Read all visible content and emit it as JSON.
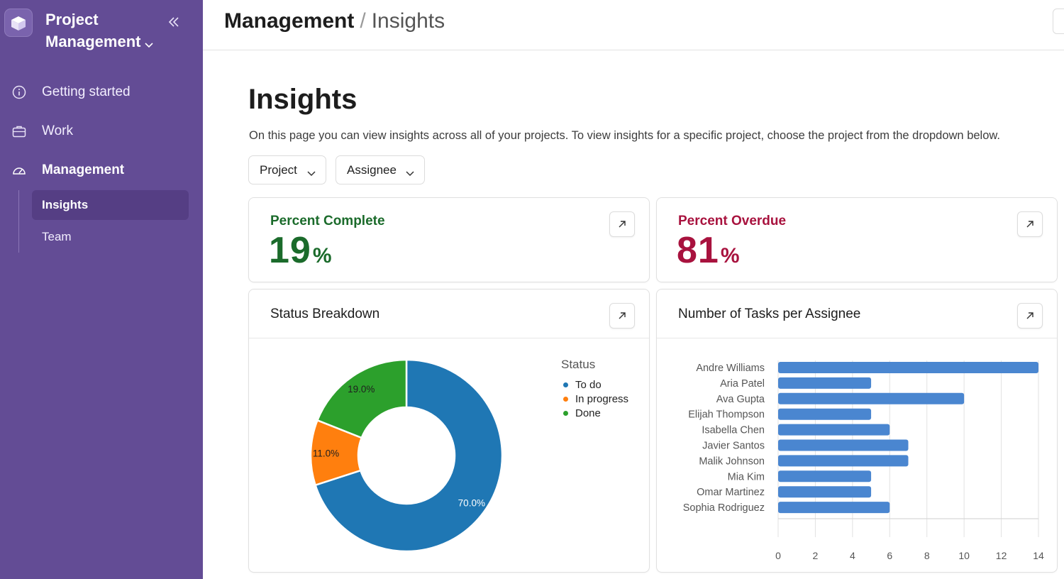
{
  "app": {
    "title_line1": "Project",
    "title_line2": "Management"
  },
  "sidebar": {
    "items": [
      {
        "label": "Getting started",
        "icon": "info-icon"
      },
      {
        "label": "Work",
        "icon": "briefcase-icon"
      },
      {
        "label": "Management",
        "icon": "gauge-icon"
      }
    ],
    "subitems": [
      {
        "label": "Insights",
        "active": true
      },
      {
        "label": "Team",
        "active": false
      }
    ]
  },
  "header": {
    "breadcrumb_parent": "Management",
    "breadcrumb_separator": "/",
    "breadcrumb_current": "Insights"
  },
  "main": {
    "title": "Insights",
    "description": "On this page you can view insights across all of your projects. To view insights for a specific project, choose the project from the dropdown below.",
    "filters": {
      "project_label": "Project",
      "assignee_label": "Assignee"
    },
    "percent_complete": {
      "label": "Percent Complete",
      "value": "19",
      "unit": "%"
    },
    "percent_overdue": {
      "label": "Percent Overdue",
      "value": "81",
      "unit": "%"
    },
    "status_card_title": "Status Breakdown",
    "assignee_card_title": "Number of Tasks per Assignee"
  },
  "colors": {
    "sidebar": "#634c95",
    "complete": "#1b6b2b",
    "overdue": "#a8123e",
    "todo": "#1f77b4",
    "in_progress": "#ff7f0e",
    "done": "#2ca02c",
    "bar": "#4a86d0"
  },
  "chart_data": [
    {
      "type": "pie",
      "title": "Status Breakdown",
      "legend_title": "Status",
      "legend_position": "top-right",
      "categories": [
        "To do",
        "In progress",
        "Done"
      ],
      "values": [
        70.0,
        11.0,
        19.0
      ],
      "data_labels": [
        "70.0%",
        "11.0%",
        "19.0%"
      ],
      "colors": [
        "#1f77b4",
        "#ff7f0e",
        "#2ca02c"
      ]
    },
    {
      "type": "bar",
      "orientation": "horizontal",
      "title": "Number of Tasks per Assignee",
      "categories": [
        "Andre Williams",
        "Aria Patel",
        "Ava Gupta",
        "Elijah Thompson",
        "Isabella Chen",
        "Javier Santos",
        "Malik Johnson",
        "Mia Kim",
        "Omar Martinez",
        "Sophia Rodriguez"
      ],
      "values": [
        14,
        5,
        10,
        5,
        6,
        7,
        7,
        5,
        5,
        6
      ],
      "xlim": [
        0,
        14
      ],
      "xticks": [
        0,
        2,
        4,
        6,
        8,
        10,
        12,
        14
      ],
      "grid": true,
      "color": "#4a86d0"
    }
  ]
}
